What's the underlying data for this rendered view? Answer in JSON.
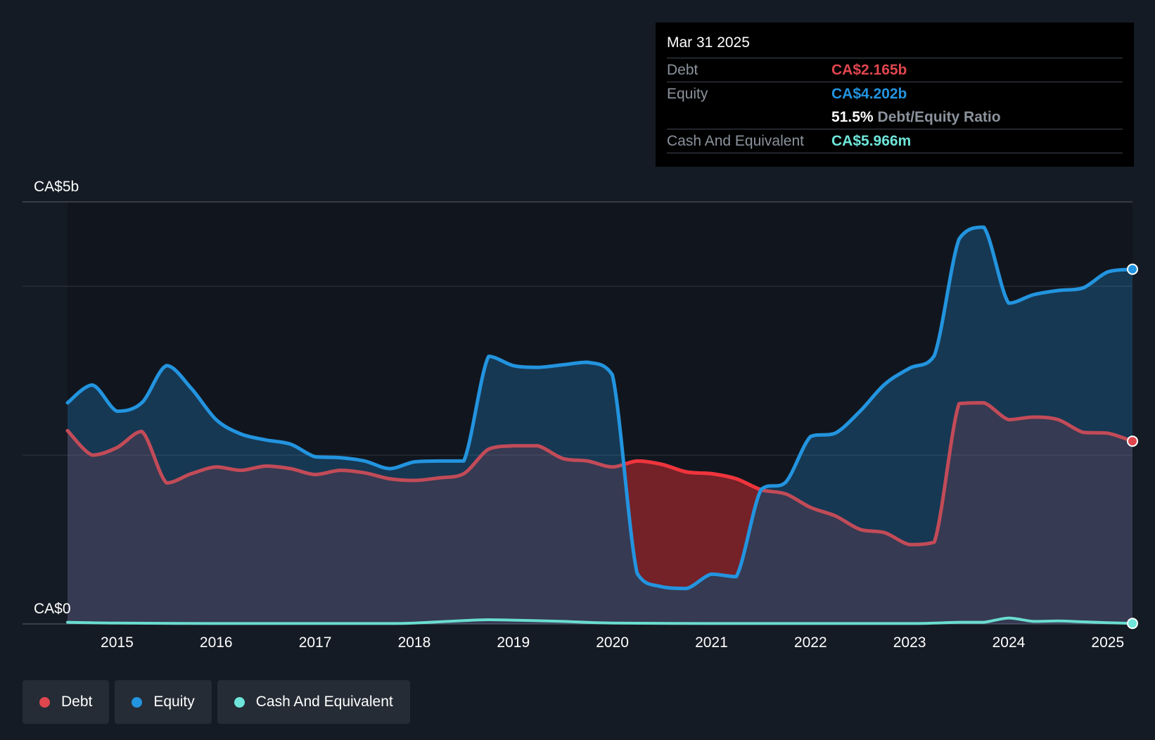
{
  "tooltip": {
    "date": "Mar 31 2025",
    "debt_label": "Debt",
    "debt_value": "CA$2.165b",
    "equity_label": "Equity",
    "equity_value": "CA$4.202b",
    "ratio_value": "51.5%",
    "ratio_label": "Debt/Equity Ratio",
    "cash_label": "Cash And Equivalent",
    "cash_value": "CA$5.966m"
  },
  "legend": {
    "debt": "Debt",
    "equity": "Equity",
    "cash": "Cash And Equivalent"
  },
  "colors": {
    "debt": "#e0464e",
    "equity": "#2394df",
    "cash": "#6ee5d8",
    "background": "#151b24"
  },
  "chart_data": {
    "type": "area",
    "y_unit": "CA$ billions",
    "y_tick_labels": [
      "CA$0",
      "CA$5b"
    ],
    "ylim": [
      0,
      5
    ],
    "xlim": [
      2014.5,
      2025.25
    ],
    "x_tick_labels": [
      "2015",
      "2016",
      "2017",
      "2018",
      "2019",
      "2020",
      "2021",
      "2022",
      "2023",
      "2024",
      "2025"
    ],
    "grid": true,
    "legend_position": "bottom-left",
    "series": [
      {
        "name": "Debt",
        "points": [
          [
            2014.5,
            2.29
          ],
          [
            2014.75,
            2.0
          ],
          [
            2015.0,
            2.09
          ],
          [
            2015.25,
            2.28
          ],
          [
            2015.5,
            1.67
          ],
          [
            2015.75,
            1.78
          ],
          [
            2016.0,
            1.86
          ],
          [
            2016.25,
            1.82
          ],
          [
            2016.5,
            1.87
          ],
          [
            2016.75,
            1.84
          ],
          [
            2017.0,
            1.77
          ],
          [
            2017.25,
            1.82
          ],
          [
            2017.5,
            1.79
          ],
          [
            2017.75,
            1.72
          ],
          [
            2018.0,
            1.7
          ],
          [
            2018.25,
            1.73
          ],
          [
            2018.5,
            1.78
          ],
          [
            2018.75,
            2.07
          ],
          [
            2019.0,
            2.11
          ],
          [
            2019.25,
            2.11
          ],
          [
            2019.5,
            1.96
          ],
          [
            2019.75,
            1.93
          ],
          [
            2020.0,
            1.86
          ],
          [
            2020.25,
            1.93
          ],
          [
            2020.5,
            1.89
          ],
          [
            2020.75,
            1.8
          ],
          [
            2021.0,
            1.78
          ],
          [
            2021.25,
            1.72
          ],
          [
            2021.5,
            1.59
          ],
          [
            2021.75,
            1.54
          ],
          [
            2022.0,
            1.38
          ],
          [
            2022.25,
            1.28
          ],
          [
            2022.5,
            1.12
          ],
          [
            2022.75,
            1.08
          ],
          [
            2023.0,
            0.94
          ],
          [
            2023.25,
            0.97
          ],
          [
            2023.5,
            2.61
          ],
          [
            2023.75,
            2.62
          ],
          [
            2024.0,
            2.42
          ],
          [
            2024.25,
            2.45
          ],
          [
            2024.5,
            2.42
          ],
          [
            2024.75,
            2.27
          ],
          [
            2025.0,
            2.26
          ],
          [
            2025.25,
            2.165
          ]
        ]
      },
      {
        "name": "Equity",
        "points": [
          [
            2014.5,
            2.62
          ],
          [
            2014.75,
            2.83
          ],
          [
            2015.0,
            2.52
          ],
          [
            2015.25,
            2.62
          ],
          [
            2015.5,
            3.06
          ],
          [
            2015.75,
            2.79
          ],
          [
            2016.0,
            2.42
          ],
          [
            2016.25,
            2.25
          ],
          [
            2016.5,
            2.18
          ],
          [
            2016.75,
            2.13
          ],
          [
            2017.0,
            1.98
          ],
          [
            2017.25,
            1.97
          ],
          [
            2017.5,
            1.93
          ],
          [
            2017.75,
            1.84
          ],
          [
            2018.0,
            1.92
          ],
          [
            2018.25,
            1.93
          ],
          [
            2018.5,
            1.93
          ],
          [
            2018.75,
            3.17
          ],
          [
            2019.0,
            3.06
          ],
          [
            2019.25,
            3.04
          ],
          [
            2019.5,
            3.07
          ],
          [
            2019.75,
            3.1
          ],
          [
            2020.0,
            2.95
          ],
          [
            2020.25,
            0.6
          ],
          [
            2020.5,
            0.44
          ],
          [
            2020.75,
            0.42
          ],
          [
            2021.0,
            0.59
          ],
          [
            2021.25,
            0.56
          ],
          [
            2021.5,
            1.59
          ],
          [
            2021.75,
            1.68
          ],
          [
            2022.0,
            2.22
          ],
          [
            2022.25,
            2.26
          ],
          [
            2022.5,
            2.52
          ],
          [
            2022.75,
            2.84
          ],
          [
            2023.0,
            3.03
          ],
          [
            2023.25,
            3.18
          ],
          [
            2023.5,
            4.56
          ],
          [
            2023.75,
            4.7
          ],
          [
            2024.0,
            3.8
          ],
          [
            2024.25,
            3.9
          ],
          [
            2024.5,
            3.95
          ],
          [
            2024.75,
            3.98
          ],
          [
            2025.0,
            4.17
          ],
          [
            2025.25,
            4.202
          ]
        ]
      },
      {
        "name": "Cash And Equivalent",
        "points": [
          [
            2014.5,
            0.02
          ],
          [
            2015.0,
            0.01
          ],
          [
            2016.0,
            0.005
          ],
          [
            2017.0,
            0.005
          ],
          [
            2017.75,
            0.005
          ],
          [
            2018.0,
            0.01
          ],
          [
            2018.5,
            0.04
          ],
          [
            2018.75,
            0.05
          ],
          [
            2019.0,
            0.045
          ],
          [
            2019.5,
            0.03
          ],
          [
            2020.0,
            0.01
          ],
          [
            2021.0,
            0.005
          ],
          [
            2022.0,
            0.005
          ],
          [
            2023.0,
            0.005
          ],
          [
            2023.25,
            0.01
          ],
          [
            2023.5,
            0.02
          ],
          [
            2023.75,
            0.02
          ],
          [
            2024.0,
            0.07
          ],
          [
            2024.25,
            0.03
          ],
          [
            2024.5,
            0.035
          ],
          [
            2024.75,
            0.025
          ],
          [
            2025.0,
            0.015
          ],
          [
            2025.25,
            0.006
          ]
        ]
      }
    ]
  }
}
